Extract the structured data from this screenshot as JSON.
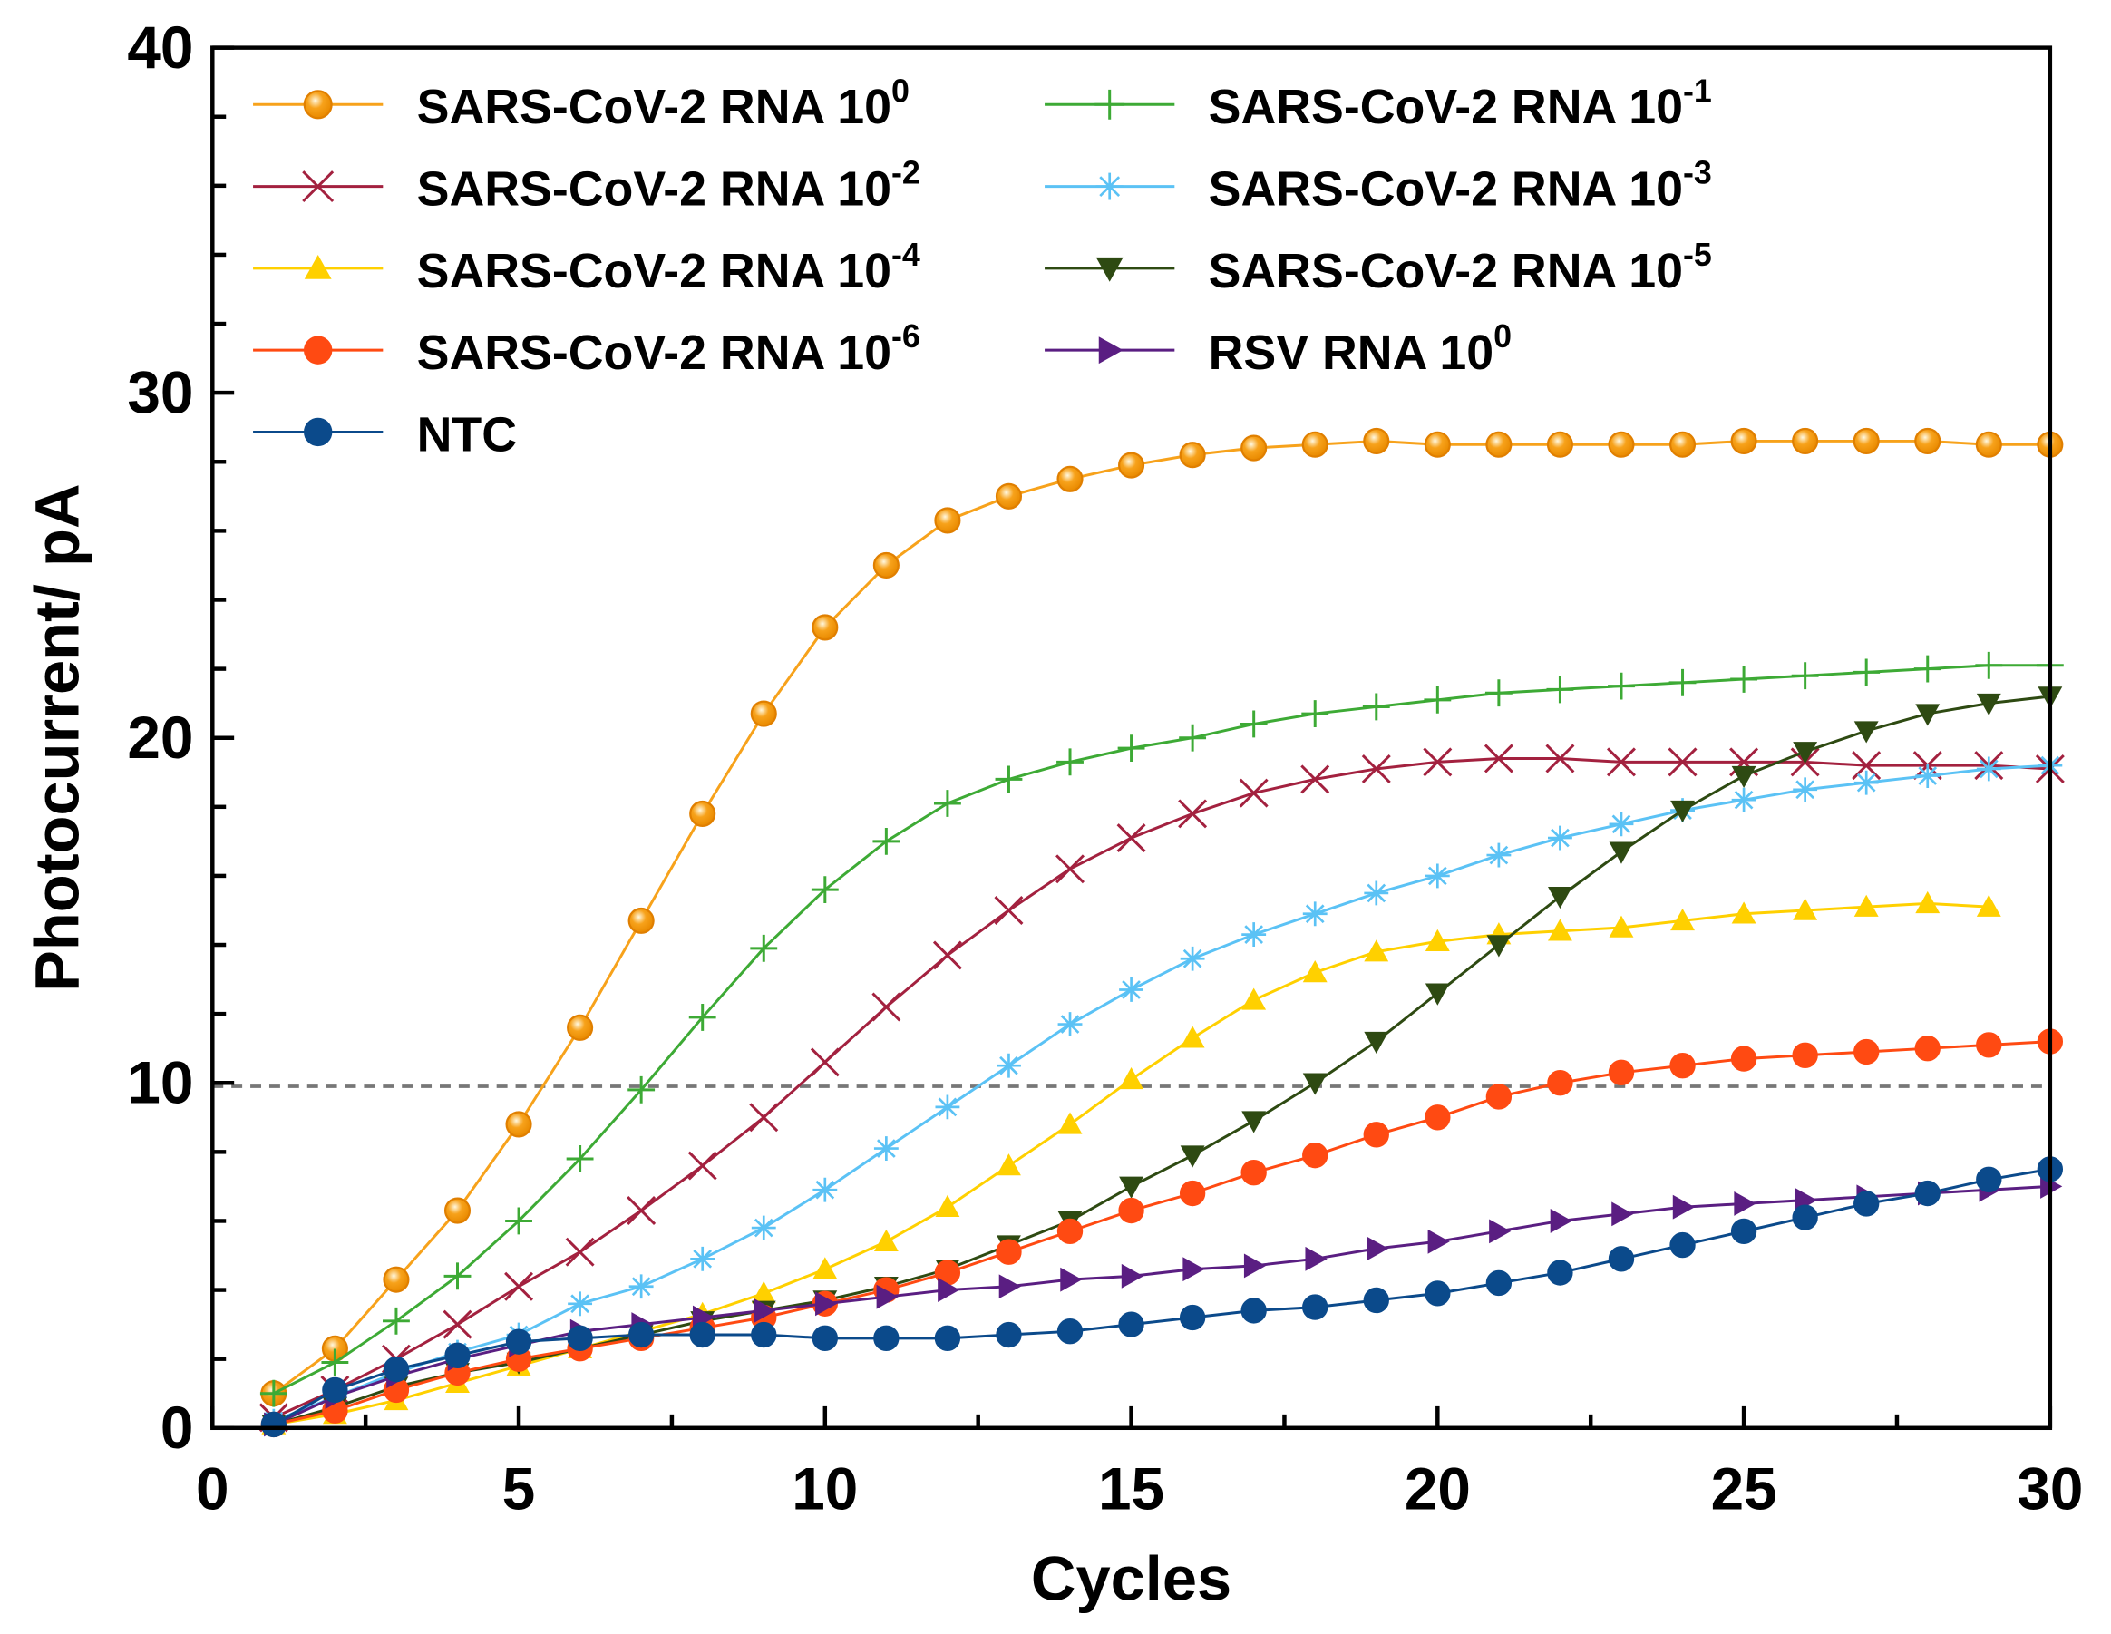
{
  "chart_data": {
    "type": "line",
    "title": "",
    "xlabel": "Cycles",
    "ylabel": "Photocurrent/ pA",
    "xlim": [
      0,
      30
    ],
    "ylim": [
      0,
      40
    ],
    "xticks": [
      0,
      5,
      10,
      15,
      20,
      25,
      30
    ],
    "yticks": [
      0,
      10,
      20,
      30,
      40
    ],
    "grid": false,
    "legend_placement": "top-left",
    "threshold": {
      "value": 9.9,
      "style": "dashed",
      "color": "#777777"
    },
    "x": [
      1,
      2,
      3,
      4,
      5,
      6,
      7,
      8,
      9,
      10,
      11,
      12,
      13,
      14,
      15,
      16,
      17,
      18,
      19,
      20,
      21,
      22,
      23,
      24,
      25,
      26,
      27,
      28,
      29,
      30
    ],
    "series": [
      {
        "name": "SARS-CoV-2 RNA 10^0",
        "label": "SARS-CoV-2 RNA 10",
        "exp": "0",
        "color": "#F7A21B",
        "marker": "circle-open-shaded",
        "values": [
          1.0,
          2.3,
          4.3,
          6.3,
          8.8,
          11.6,
          14.7,
          17.8,
          20.7,
          23.2,
          25.0,
          26.3,
          27.0,
          27.5,
          27.9,
          28.2,
          28.4,
          28.5,
          28.6,
          28.5,
          28.5,
          28.5,
          28.5,
          28.5,
          28.6,
          28.6,
          28.6,
          28.6,
          28.5,
          28.5
        ]
      },
      {
        "name": "SARS-CoV-2 RNA 10^-1",
        "label": "SARS-CoV-2 RNA 10",
        "exp": "-1",
        "color": "#3DAA35",
        "marker": "plus",
        "values": [
          1.0,
          1.9,
          3.1,
          4.4,
          6.0,
          7.8,
          9.8,
          11.9,
          13.9,
          15.6,
          17.0,
          18.1,
          18.8,
          19.3,
          19.7,
          20.0,
          20.4,
          20.7,
          20.9,
          21.1,
          21.3,
          21.4,
          21.5,
          21.6,
          21.7,
          21.8,
          21.9,
          22.0,
          22.1,
          22.1
        ]
      },
      {
        "name": "SARS-CoV-2 RNA 10^-2",
        "label": "SARS-CoV-2 RNA 10",
        "exp": "-2",
        "color": "#A3213F",
        "marker": "x",
        "values": [
          0.3,
          1.1,
          2.0,
          3.0,
          4.1,
          5.1,
          6.3,
          7.6,
          9.0,
          10.6,
          12.2,
          13.7,
          15.0,
          16.2,
          17.1,
          17.8,
          18.4,
          18.8,
          19.1,
          19.3,
          19.4,
          19.4,
          19.3,
          19.3,
          19.3,
          19.3,
          19.2,
          19.2,
          19.2,
          19.1
        ]
      },
      {
        "name": "SARS-CoV-2 RNA 10^-3",
        "label": "SARS-CoV-2 RNA 10",
        "exp": "-3",
        "color": "#5BC2F5",
        "marker": "asterisk",
        "values": [
          0.2,
          0.9,
          1.6,
          2.2,
          2.7,
          3.6,
          4.1,
          4.9,
          5.8,
          6.9,
          8.1,
          9.3,
          10.5,
          11.7,
          12.7,
          13.6,
          14.3,
          14.9,
          15.5,
          16.0,
          16.6,
          17.1,
          17.5,
          17.9,
          18.2,
          18.5,
          18.7,
          18.9,
          19.1,
          19.2
        ]
      },
      {
        "name": "SARS-CoV-2 RNA 10^-4",
        "label": "SARS-CoV-2 RNA 10",
        "exp": "-4",
        "color": "#FFD000",
        "marker": "triangle-up",
        "values": [
          0.1,
          0.4,
          0.8,
          1.3,
          1.8,
          2.3,
          2.8,
          3.3,
          3.9,
          4.6,
          5.4,
          6.4,
          7.6,
          8.8,
          10.1,
          11.3,
          12.4,
          13.2,
          13.8,
          14.1,
          14.3,
          14.4,
          14.5,
          14.7,
          14.9,
          15.0,
          15.1,
          15.2,
          15.1,
          null
        ]
      },
      {
        "name": "SARS-CoV-2 RNA 10^-5",
        "label": "SARS-CoV-2 RNA 10",
        "exp": "-5",
        "color": "#2E4A12",
        "marker": "triangle-down",
        "values": [
          0.1,
          0.6,
          1.2,
          1.6,
          1.9,
          2.3,
          2.7,
          3.1,
          3.4,
          3.7,
          4.1,
          4.6,
          5.3,
          6.0,
          7.0,
          7.9,
          8.9,
          10.0,
          11.2,
          12.6,
          14.0,
          15.4,
          16.7,
          17.9,
          18.9,
          19.6,
          20.2,
          20.7,
          21.0,
          21.2
        ]
      },
      {
        "name": "SARS-CoV-2 RNA 10^-6",
        "label": "SARS-CoV-2 RNA 10",
        "exp": "-6",
        "color": "#FF4A12",
        "marker": "circle",
        "values": [
          0.1,
          0.5,
          1.1,
          1.6,
          2.0,
          2.3,
          2.6,
          2.9,
          3.2,
          3.6,
          4.0,
          4.5,
          5.1,
          5.7,
          6.3,
          6.8,
          7.4,
          7.9,
          8.5,
          9.0,
          9.6,
          10.0,
          10.3,
          10.5,
          10.7,
          10.8,
          10.9,
          11.0,
          11.1,
          11.2
        ]
      },
      {
        "name": "RSV RNA 10^0",
        "label": "RSV RNA 10",
        "exp": "0",
        "color": "#5A1E82",
        "marker": "triangle-right",
        "values": [
          0.1,
          0.9,
          1.5,
          2.0,
          2.4,
          2.8,
          3.0,
          3.2,
          3.4,
          3.6,
          3.8,
          4.0,
          4.1,
          4.3,
          4.4,
          4.6,
          4.7,
          4.9,
          5.2,
          5.4,
          5.7,
          6.0,
          6.2,
          6.4,
          6.5,
          6.6,
          6.7,
          6.8,
          6.9,
          7.0
        ]
      },
      {
        "name": "NTC",
        "label": "NTC",
        "exp": "",
        "color": "#0B4A8B",
        "marker": "circle",
        "values": [
          0.1,
          1.1,
          1.7,
          2.1,
          2.5,
          2.6,
          2.7,
          2.7,
          2.7,
          2.6,
          2.6,
          2.6,
          2.7,
          2.8,
          3.0,
          3.2,
          3.4,
          3.5,
          3.7,
          3.9,
          4.2,
          4.5,
          4.9,
          5.3,
          5.7,
          6.1,
          6.5,
          6.8,
          7.2,
          7.5
        ]
      }
    ]
  }
}
